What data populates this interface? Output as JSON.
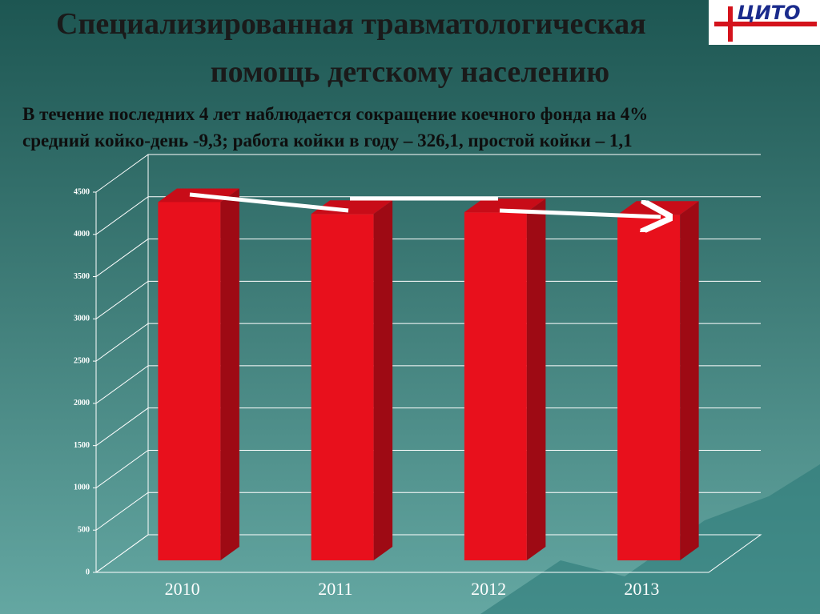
{
  "logo": "ЦИТО",
  "chart_data": {
    "type": "bar",
    "title": [
      "Специализированная травматологическая",
      "помощь детскому населению"
    ],
    "subtitle": [
      "В течение последних 4 лет наблюдается сокращение коечного фонда на 4%",
      "средний койко-день -9,3;  работа койки в году – 326,1, простой койки – 1,1"
    ],
    "categories": [
      "2010",
      "2011",
      "2012",
      "2013"
    ],
    "values": [
      4240,
      4100,
      4120,
      4090
    ],
    "color": "#e8101c",
    "ylim": [
      0,
      4500
    ],
    "yticks": [
      0,
      500,
      1000,
      1500,
      2000,
      2500,
      3000,
      3500,
      4000,
      4500
    ],
    "grid": true
  }
}
